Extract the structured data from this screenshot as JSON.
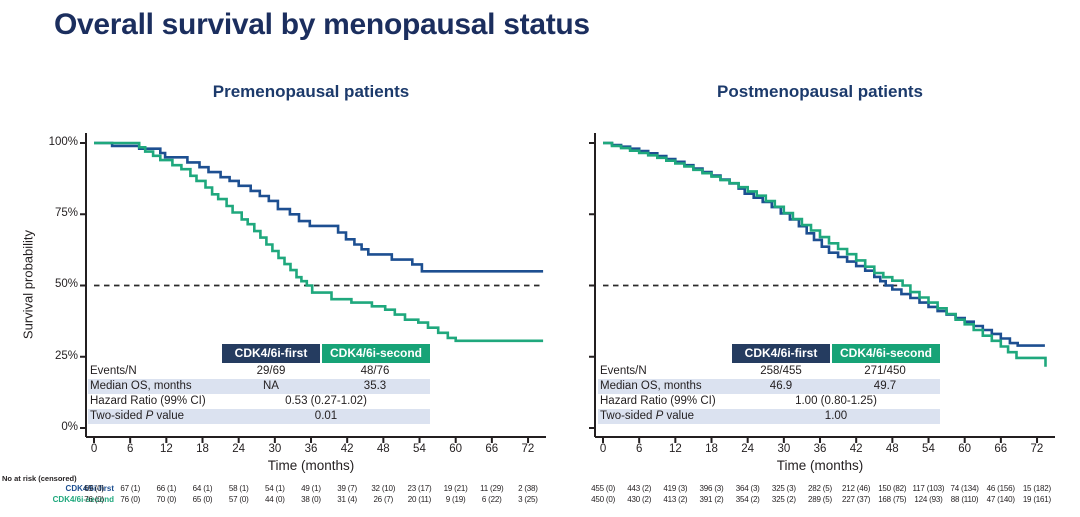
{
  "slide_title": "Overall survival by menopausal status",
  "colors": {
    "title_navy": "#1b2e5e",
    "subtitle_navy": "#1c3a6b",
    "curve_first_navy": "#1d4f91",
    "curve_second_green": "#1fa87d",
    "header_navy_bg": "#253c60",
    "header_green_bg": "#17a377",
    "shaded_row_bg": "#dbe2f0",
    "axis_black": "#231f20"
  },
  "risk": {
    "caption": "No at risk (censored)",
    "row_labels": [
      "CDK4/6i-first",
      "CDK4/6i-second"
    ]
  },
  "chart_data": [
    {
      "type": "line",
      "subtype": "kaplan-meier-step",
      "title": "Premenopausal patients",
      "xlabel": "Time (months)",
      "ylabel": "Survival probability",
      "x_ticks": [
        "0",
        "6",
        "12",
        "18",
        "24",
        "30",
        "36",
        "42",
        "48",
        "54",
        "60",
        "66",
        "72"
      ],
      "y_ticks": [
        "100%",
        "75%",
        "50%",
        "25%",
        "0%"
      ],
      "xlim": [
        0,
        74.5
      ],
      "ylim": [
        0,
        100
      ],
      "grid": false,
      "legend_position": "table-header",
      "reference_line": {
        "y_pct": 50,
        "style": "dashed",
        "to_month": 74.5
      },
      "series": [
        {
          "name": "CDK4/6i-first",
          "color": "#1d4f91",
          "points": [
            [
              0,
              100
            ],
            [
              3,
              99
            ],
            [
              7.5,
              98
            ],
            [
              11,
              96.5
            ],
            [
              11.8,
              95
            ],
            [
              15.5,
              93.2
            ],
            [
              17.5,
              91.5
            ],
            [
              19,
              89.8
            ],
            [
              21,
              88
            ],
            [
              22.5,
              86.7
            ],
            [
              24,
              85
            ],
            [
              26,
              83.2
            ],
            [
              27.5,
              81.4
            ],
            [
              29,
              79.7
            ],
            [
              30.5,
              76.8
            ],
            [
              32.5,
              75
            ],
            [
              34,
              72.6
            ],
            [
              35.8,
              70.9
            ],
            [
              40.5,
              68.6
            ],
            [
              41.8,
              66.2
            ],
            [
              43.2,
              64.4
            ],
            [
              44.4,
              62.7
            ],
            [
              45.5,
              60.9
            ],
            [
              49.4,
              59.1
            ],
            [
              52.8,
              57.4
            ],
            [
              54.4,
              55
            ],
            [
              74.5,
              55
            ]
          ]
        },
        {
          "name": "CDK4/6i-second",
          "color": "#1fa87d",
          "points": [
            [
              0,
              100
            ],
            [
              7.5,
              98.5
            ],
            [
              8.5,
              97
            ],
            [
              9.8,
              95.5
            ],
            [
              11,
              94
            ],
            [
              13,
              92.2
            ],
            [
              14.5,
              90.8
            ],
            [
              16,
              88.5
            ],
            [
              17,
              86.7
            ],
            [
              18.5,
              84.4
            ],
            [
              19.6,
              82
            ],
            [
              20.6,
              80.3
            ],
            [
              22,
              77.9
            ],
            [
              23,
              75.6
            ],
            [
              24.5,
              73.2
            ],
            [
              25.5,
              71.5
            ],
            [
              26.6,
              69.1
            ],
            [
              27.6,
              66.8
            ],
            [
              28.6,
              64.4
            ],
            [
              29.6,
              62.1
            ],
            [
              30.6,
              59.7
            ],
            [
              31.6,
              57.5
            ],
            [
              32.6,
              55.4
            ],
            [
              33.6,
              52.9
            ],
            [
              34.4,
              51.5
            ],
            [
              35.3,
              50
            ],
            [
              36.2,
              47.5
            ],
            [
              39.4,
              45.2
            ],
            [
              42.7,
              44
            ],
            [
              46.1,
              42.7
            ],
            [
              48.3,
              41.5
            ],
            [
              49.9,
              39.8
            ],
            [
              51.6,
              38
            ],
            [
              53.8,
              37
            ],
            [
              55.4,
              35.2
            ],
            [
              57.1,
              33.4
            ],
            [
              58.7,
              31.6
            ],
            [
              60,
              30.6
            ],
            [
              74.5,
              30.6
            ]
          ]
        }
      ],
      "stats": {
        "col_headers": [
          "CDK4/6i-first",
          "CDK4/6i-second"
        ],
        "events_label": "Events/N",
        "events_first": "29/69",
        "events_second": "48/76",
        "median_label": "Median OS, months",
        "median_first": "NA",
        "median_second": "35.3",
        "hr_label": "Hazard Ratio (99% CI)",
        "hr_value": "0.53 (0.27-1.02)",
        "p_prefix": "Two-sided",
        "p_italic": "P",
        "p_suffix": "value",
        "p_value": "0.01"
      },
      "risk_table": {
        "first": [
          "69 (0)",
          "67 (1)",
          "66 (1)",
          "64 (1)",
          "58 (1)",
          "54 (1)",
          "49 (1)",
          "39 (7)",
          "32 (10)",
          "23 (17)",
          "19 (21)",
          "11 (29)",
          "2 (38)"
        ],
        "second": [
          "76 (0)",
          "76 (0)",
          "70 (0)",
          "65 (0)",
          "57 (0)",
          "44 (0)",
          "38 (0)",
          "31 (4)",
          "26 (7)",
          "20 (11)",
          "9 (19)",
          "6 (22)",
          "3 (25)"
        ]
      }
    },
    {
      "type": "line",
      "subtype": "kaplan-meier-step",
      "title": "Postmenopausal patients",
      "xlabel": "Time (months)",
      "ylabel": "Survival probability",
      "x_ticks": [
        "0",
        "6",
        "12",
        "18",
        "24",
        "30",
        "36",
        "42",
        "48",
        "54",
        "60",
        "66",
        "72"
      ],
      "y_ticks": [
        "100%",
        "75%",
        "50%",
        "25%",
        "0%"
      ],
      "xlim": [
        0,
        74.5
      ],
      "ylim": [
        0,
        100
      ],
      "grid": false,
      "legend_position": "table-header",
      "reference_line": {
        "y_pct": 50,
        "style": "dashed",
        "to_month": 48.8
      },
      "series": [
        {
          "name": "CDK4/6i-first",
          "color": "#1d4f91",
          "points": [
            [
              0,
              100
            ],
            [
              1.5,
              99.3
            ],
            [
              3,
              98.7
            ],
            [
              4.5,
              98
            ],
            [
              6,
              97.2
            ],
            [
              7.5,
              96.4
            ],
            [
              9,
              95.4
            ],
            [
              10.5,
              94.4
            ],
            [
              12,
              93.4
            ],
            [
              13.5,
              92.2
            ],
            [
              15,
              91
            ],
            [
              16.5,
              89.8
            ],
            [
              18,
              88.6
            ],
            [
              19.5,
              87.2
            ],
            [
              21,
              85.8
            ],
            [
              22.5,
              84
            ],
            [
              23.5,
              82.2
            ],
            [
              25,
              80.8
            ],
            [
              26.5,
              79.3
            ],
            [
              28,
              77.5
            ],
            [
              29.5,
              75.3
            ],
            [
              31,
              73.2
            ],
            [
              32.5,
              70.8
            ],
            [
              33.8,
              68.3
            ],
            [
              35,
              66
            ],
            [
              36.3,
              63.6
            ],
            [
              37.5,
              61.5
            ],
            [
              39,
              60
            ],
            [
              40.5,
              58.4
            ],
            [
              42,
              56.8
            ],
            [
              43.5,
              55.2
            ],
            [
              45,
              53
            ],
            [
              46,
              51.5
            ],
            [
              46.9,
              50
            ],
            [
              48,
              48.6
            ],
            [
              49.5,
              47
            ],
            [
              51,
              45.6
            ],
            [
              52.5,
              44
            ],
            [
              54,
              42.5
            ],
            [
              55.5,
              41
            ],
            [
              57,
              39.8
            ],
            [
              58.5,
              38.6
            ],
            [
              60,
              37.3
            ],
            [
              61.5,
              35.8
            ],
            [
              63,
              34.4
            ],
            [
              64.5,
              33
            ],
            [
              66,
              31.4
            ],
            [
              67.5,
              29.8
            ],
            [
              68.8,
              28.9
            ],
            [
              73.3,
              28.9
            ]
          ]
        },
        {
          "name": "CDK4/6i-second",
          "color": "#1fa87d",
          "points": [
            [
              0,
              100
            ],
            [
              1.5,
              99
            ],
            [
              3,
              98.2
            ],
            [
              4.5,
              97.3
            ],
            [
              6,
              96.5
            ],
            [
              7.5,
              95.7
            ],
            [
              9,
              94.8
            ],
            [
              10.5,
              93.8
            ],
            [
              12,
              92.8
            ],
            [
              13.5,
              91.8
            ],
            [
              15,
              90.6
            ],
            [
              16.5,
              89.4
            ],
            [
              18,
              88.2
            ],
            [
              19.5,
              87
            ],
            [
              21,
              85.9
            ],
            [
              22.5,
              84.5
            ],
            [
              24,
              83
            ],
            [
              25.5,
              81.5
            ],
            [
              27,
              79.6
            ],
            [
              28.5,
              77.6
            ],
            [
              30,
              75.4
            ],
            [
              31.5,
              73.3
            ],
            [
              33,
              71.2
            ],
            [
              34.5,
              69.3
            ],
            [
              36,
              67
            ],
            [
              37.5,
              64.8
            ],
            [
              39,
              62.8
            ],
            [
              40.5,
              61
            ],
            [
              42,
              58.8
            ],
            [
              43.5,
              56.6
            ],
            [
              45,
              54.4
            ],
            [
              46.5,
              52.9
            ],
            [
              48,
              51.7
            ],
            [
              49.7,
              50
            ],
            [
              51,
              47.7
            ],
            [
              52.5,
              45.8
            ],
            [
              54,
              44
            ],
            [
              55.5,
              42
            ],
            [
              57,
              40
            ],
            [
              58.5,
              38
            ],
            [
              60,
              36.4
            ],
            [
              61.5,
              34.4
            ],
            [
              63,
              32.4
            ],
            [
              64.5,
              30.6
            ],
            [
              66,
              28.6
            ],
            [
              67.2,
              26.6
            ],
            [
              68.6,
              24.6
            ],
            [
              73.2,
              24.6
            ],
            [
              73.4,
              21.5
            ]
          ]
        }
      ],
      "stats": {
        "col_headers": [
          "CDK4/6i-first",
          "CDK4/6i-second"
        ],
        "events_label": "Events/N",
        "events_first": "258/455",
        "events_second": "271/450",
        "median_label": "Median OS, months",
        "median_first": "46.9",
        "median_second": "49.7",
        "hr_label": "Hazard Ratio (99% CI)",
        "hr_value": "1.00 (0.80-1.25)",
        "p_prefix": "Two-sided",
        "p_italic": "P",
        "p_suffix": "value",
        "p_value": "1.00"
      },
      "risk_table": {
        "first": [
          "455 (0)",
          "443 (2)",
          "419 (3)",
          "396 (3)",
          "364 (3)",
          "325 (3)",
          "282 (5)",
          "212 (46)",
          "150 (82)",
          "117 (103)",
          "74 (134)",
          "46 (156)",
          "15 (182)"
        ],
        "second": [
          "450 (0)",
          "430 (2)",
          "413 (2)",
          "391 (2)",
          "354 (2)",
          "325 (2)",
          "289 (5)",
          "227 (37)",
          "168 (75)",
          "124 (93)",
          "88 (110)",
          "47 (140)",
          "19 (161)"
        ]
      }
    }
  ]
}
